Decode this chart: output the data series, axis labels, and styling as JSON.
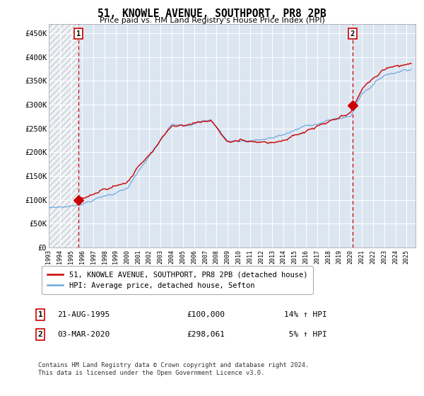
{
  "title": "51, KNOWLE AVENUE, SOUTHPORT, PR8 2PB",
  "subtitle": "Price paid vs. HM Land Registry's House Price Index (HPI)",
  "ylabel_ticks": [
    "£0",
    "£50K",
    "£100K",
    "£150K",
    "£200K",
    "£250K",
    "£300K",
    "£350K",
    "£400K",
    "£450K"
  ],
  "ytick_values": [
    0,
    50000,
    100000,
    150000,
    200000,
    250000,
    300000,
    350000,
    400000,
    450000
  ],
  "ylim": [
    0,
    470000
  ],
  "xlim_start": 1993.0,
  "xlim_end": 2025.8,
  "hpi_color": "#6fa8dc",
  "price_color": "#cc0000",
  "purchase1_year": 1995.64,
  "purchase1_price": 100000,
  "purchase1_label": "1",
  "purchase2_year": 2020.17,
  "purchase2_price": 298061,
  "purchase2_label": "2",
  "legend_line1": "51, KNOWLE AVENUE, SOUTHPORT, PR8 2PB (detached house)",
  "legend_line2": "HPI: Average price, detached house, Sefton",
  "footer": "Contains HM Land Registry data © Crown copyright and database right 2024.\nThis data is licensed under the Open Government Licence v3.0.",
  "background_color": "#ffffff",
  "plot_bg_color": "#dce6f1"
}
